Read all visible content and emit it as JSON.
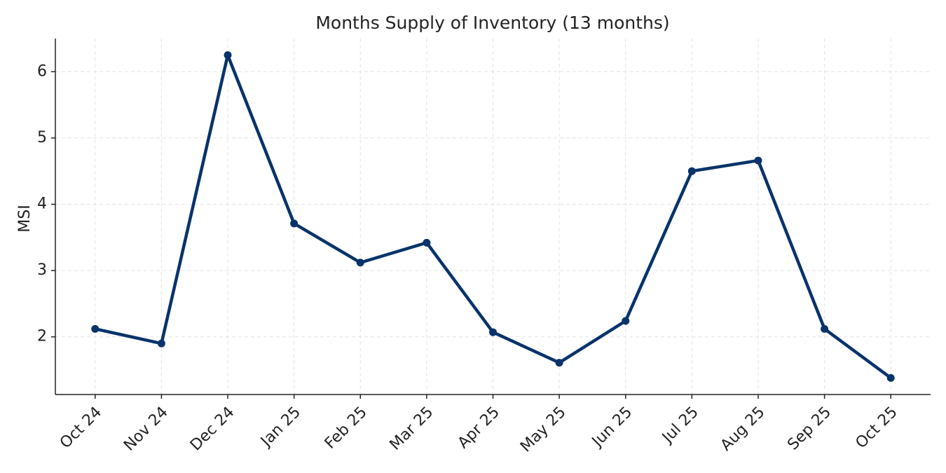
{
  "chart_data": {
    "type": "line",
    "title": "Months Supply of Inventory (13 months)",
    "y_label": "MSI",
    "categories": [
      "Oct 24",
      "Nov 24",
      "Dec 24",
      "Jan 25",
      "Feb 25",
      "Mar 25",
      "Apr 25",
      "May 25",
      "Jun 25",
      "Jul 25",
      "Aug 25",
      "Sep 25",
      "Oct 25"
    ],
    "series": [
      {
        "name": "MSI",
        "color": "#08336b",
        "values": [
          2.12,
          1.9,
          6.25,
          3.71,
          3.12,
          3.42,
          2.07,
          1.61,
          2.24,
          4.5,
          4.66,
          2.12,
          1.38
        ]
      }
    ],
    "ylim": [
      1.13,
      6.5
    ],
    "yticks": [
      2,
      3,
      4,
      5,
      6
    ],
    "grid": true
  }
}
